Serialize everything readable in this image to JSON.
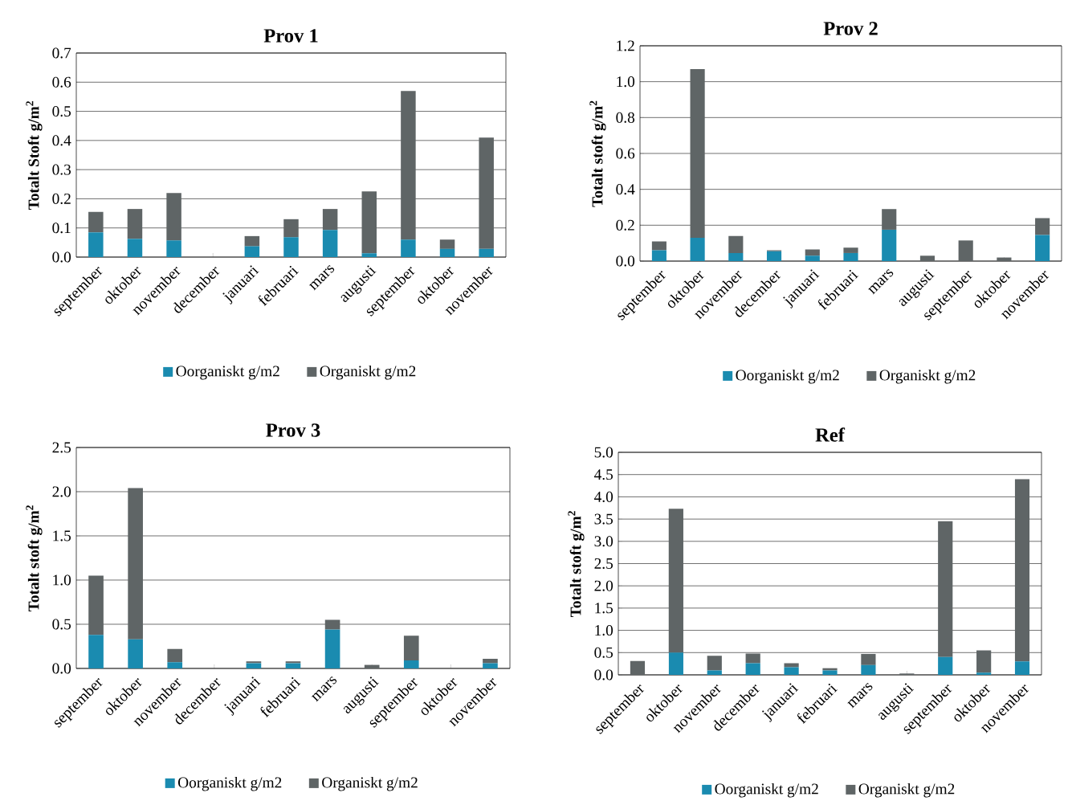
{
  "chart_data": [
    {
      "type": "bar",
      "title": "Prov 1",
      "ylabel": "Totalt Stoft g/m$^{2}$",
      "stacked": true,
      "grid": "y",
      "legend": "bottom",
      "categories": [
        "september",
        "oktober",
        "november",
        "december",
        "januari",
        "februari",
        "mars",
        "augusti",
        "september",
        "oktober",
        "november"
      ],
      "ylim": [
        0,
        0.7
      ],
      "yticks": [
        {
          "value": 0,
          "label": "0.0"
        },
        0.1,
        0.2,
        0.3,
        0.4,
        0.5,
        0.6,
        0.7
      ],
      "series": [
        {
          "name": "Oorganiskt g/m2",
          "color": "#1a8bb0",
          "values": [
            0.085,
            0.063,
            0.057,
            0,
            0.037,
            0.068,
            0.093,
            0.013,
            0.06,
            0.028,
            0.028
          ]
        },
        {
          "name": "Organiskt g/m2",
          "color": "#5f6566",
          "values": [
            0.07,
            0.102,
            0.163,
            0,
            0.035,
            0.062,
            0.072,
            0.212,
            0.51,
            0.032,
            0.382
          ]
        }
      ]
    },
    {
      "type": "bar",
      "title": "Prov 2",
      "ylabel": "Totalt stoft g/m$^{2}$",
      "stacked": true,
      "grid": "y",
      "legend": "bottom",
      "categories": [
        "september",
        "oktober",
        "november",
        "december",
        "januari",
        "februari",
        "mars",
        "augusti",
        "september",
        "oktober",
        "november"
      ],
      "ylim": [
        0,
        1.2
      ],
      "yticks": [
        {
          "value": 0,
          "label": "0.0"
        },
        0.2,
        0.4,
        0.6,
        0.8,
        {
          "value": 1,
          "label": "1.0"
        },
        1.2
      ],
      "series": [
        {
          "name": "Oorganiskt g/m2",
          "color": "#1a8bb0",
          "values": [
            0.06,
            0.13,
            0.045,
            0.055,
            0.03,
            0.045,
            0.175,
            0,
            0,
            0,
            0.145
          ]
        },
        {
          "name": "Organiskt g/m2",
          "color": "#5f6566",
          "values": [
            0.05,
            0.94,
            0.095,
            0.005,
            0.035,
            0.03,
            0.115,
            0.03,
            0.115,
            0.02,
            0.095
          ]
        }
      ]
    },
    {
      "type": "bar",
      "title": "Prov 3",
      "ylabel": "Totalt stoft g/m$^{2}$",
      "stacked": true,
      "grid": "y",
      "legend": "bottom",
      "categories": [
        "september",
        "oktober",
        "november",
        "december",
        "januari",
        "februari",
        "mars",
        "augusti",
        "september",
        "oktober",
        "november"
      ],
      "ylim": [
        0,
        2.5
      ],
      "yticks": [
        {
          "value": 0,
          "label": "0.0"
        },
        0.5,
        {
          "value": 1,
          "label": "1.0"
        },
        1.5,
        {
          "value": 2,
          "label": "2.0"
        },
        2.5
      ],
      "series": [
        {
          "name": "Oorganiskt g/m2",
          "color": "#1a8bb0",
          "values": [
            0.38,
            0.33,
            0.07,
            0,
            0.06,
            0.06,
            0.44,
            0,
            0.09,
            0,
            0.06
          ]
        },
        {
          "name": "Organiskt g/m2",
          "color": "#5f6566",
          "values": [
            0.67,
            1.71,
            0.15,
            0,
            0.02,
            0.02,
            0.11,
            0.04,
            0.28,
            null,
            0.05
          ]
        }
      ]
    },
    {
      "type": "bar",
      "title": "Ref",
      "ylabel": "Totalt stoft g/m$^{2}$",
      "stacked": true,
      "grid": "y",
      "legend": "bottom",
      "categories": [
        "september",
        "oktober",
        "november",
        "december",
        "januari",
        "februari",
        "mars",
        "augusti",
        "september",
        "oktober",
        "november"
      ],
      "ylim": [
        0,
        5
      ],
      "yticks": [
        {
          "value": 0,
          "label": "0.0"
        },
        0.5,
        {
          "value": 1,
          "label": "1.0"
        },
        1.5,
        {
          "value": 2,
          "label": "2.0"
        },
        2.5,
        {
          "value": 3,
          "label": "3.0"
        },
        3.5,
        {
          "value": 4,
          "label": "4.0"
        },
        4.5,
        {
          "value": 5,
          "label": "5.0"
        }
      ],
      "series": [
        {
          "name": "Oorganiskt g/m2",
          "color": "#1a8bb0",
          "values": [
            0,
            0.5,
            0.1,
            0.26,
            0.17,
            0.1,
            0.22,
            0,
            0.4,
            0.05,
            0.3
          ]
        },
        {
          "name": "Organiskt g/m2",
          "color": "#5f6566",
          "values": [
            0.31,
            3.23,
            0.33,
            0.22,
            0.09,
            0.05,
            0.25,
            0.03,
            3.05,
            0.5,
            4.1
          ]
        }
      ]
    }
  ]
}
